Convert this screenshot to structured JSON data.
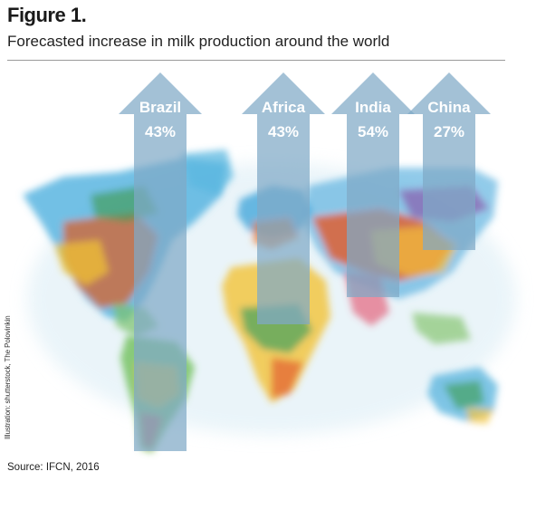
{
  "figure_label": "Figure 1.",
  "title": "Forecasted increase in milk production around the world",
  "credit": "Illustration: shutterstock, The Polovinkin",
  "source": "Source: IFCN, 2016",
  "colors": {
    "arrow_fill": "#7fa9c6",
    "arrow_text": "#ffffff",
    "rule": "#9a9a9a"
  },
  "chart_data": {
    "type": "bar",
    "categories": [
      "Brazil",
      "Africa",
      "India",
      "China"
    ],
    "values": [
      43,
      43,
      54,
      27
    ],
    "value_labels": [
      "43%",
      "43%",
      "54%",
      "27%"
    ],
    "unit": "%",
    "title": "Forecasted increase in milk production around the world"
  }
}
